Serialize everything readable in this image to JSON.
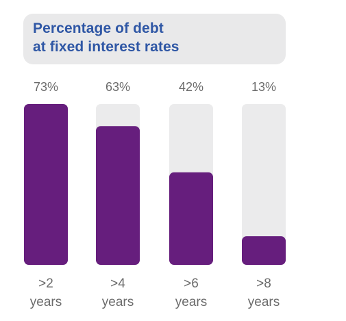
{
  "chart_data": {
    "type": "bar",
    "title": [
      "Percentage of debt",
      "at fixed interest rates"
    ],
    "categories": [
      [
        ">2",
        "years"
      ],
      [
        ">4",
        "years"
      ],
      [
        ">6",
        "years"
      ],
      [
        ">8",
        "years"
      ]
    ],
    "values": [
      73,
      63,
      42,
      13
    ],
    "value_labels": [
      "73%",
      "63%",
      "42%",
      "13%"
    ],
    "ylim": [
      0,
      73
    ],
    "colors": {
      "bar": "#661e7d",
      "track": "#ebebec",
      "title_text": "#2f57a5",
      "title_background": "#e9e9ea",
      "label_text": "#6b6b6b"
    }
  }
}
